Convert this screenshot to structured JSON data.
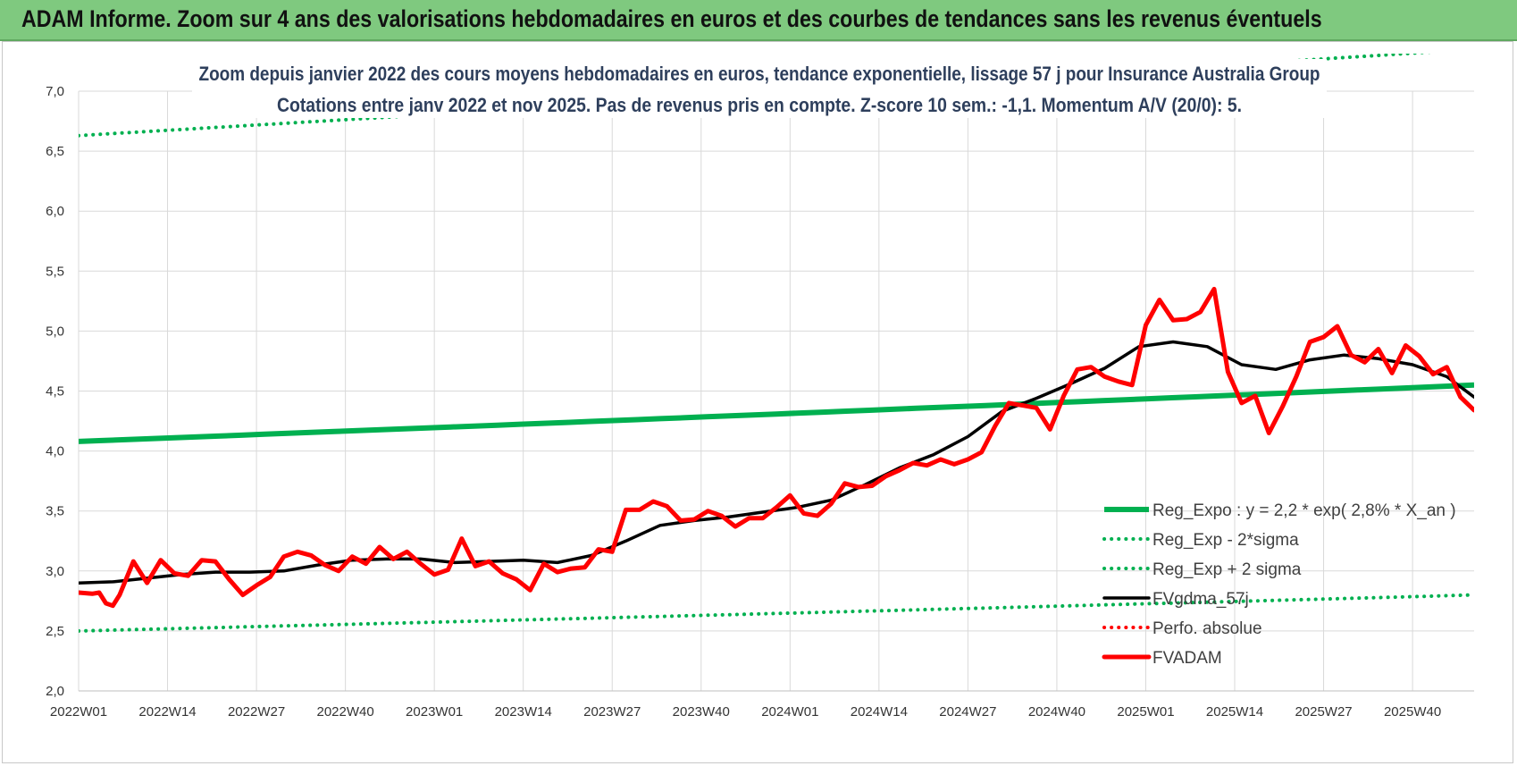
{
  "banner": {
    "title": "ADAM Informe. Zoom sur 4 ans des valorisations hebdomadaires en euros et des courbes de tendances sans les revenus éventuels"
  },
  "colors": {
    "banner_bg": "#7fc97f",
    "reg_expo": "#00b050",
    "fvgdma": "#000000",
    "fvadam": "#ff0000",
    "perfo": "#ff0000"
  },
  "chart_data": {
    "type": "line",
    "title_lines": [
      "Zoom depuis janvier 2022 des cours moyens hebdomadaires en euros, tendance exponentielle, lissage 57 j pour Insurance Australia Group",
      "Cotations entre janv 2022 et nov 2025. Pas de revenus pris en compte. Z-score 10 sem.: -1,1. Momentum A/V (20/0): 5."
    ],
    "x_tick_labels": [
      "2022W01",
      "2022W14",
      "2022W27",
      "2022W40",
      "2023W01",
      "2023W14",
      "2023W27",
      "2023W40",
      "2024W01",
      "2024W14",
      "2024W27",
      "2024W40",
      "2025W01",
      "2025W14",
      "2025W27",
      "2025W40"
    ],
    "x_range": [
      0,
      204
    ],
    "y_tick_labels": [
      "2,0",
      "2,5",
      "3,0",
      "3,5",
      "4,0",
      "4,5",
      "5,0",
      "5,5",
      "6,0",
      "6,5",
      "7,0"
    ],
    "ylim": [
      2.0,
      7.0
    ],
    "grid": true,
    "legend_position": "bottom-right",
    "series": [
      {
        "name": "Reg_Expo : y = 2,2 * exp( 2,8% *  X_an )",
        "style": "solid-thick",
        "color": "#00b050",
        "x": [
          0,
          204
        ],
        "y": [
          4.08,
          4.55
        ]
      },
      {
        "name": "Reg_Exp - 2*sigma",
        "style": "dotted",
        "color": "#00b050",
        "x": [
          0,
          204
        ],
        "y": [
          2.5,
          2.8
        ]
      },
      {
        "name": "Reg_Exp + 2 sigma",
        "style": "dotted",
        "color": "#00b050",
        "x": [
          0,
          204
        ],
        "y": [
          6.63,
          7.35
        ]
      },
      {
        "name": "FVgdma_57j",
        "style": "solid",
        "color": "#000000",
        "x": [
          0,
          5,
          10,
          15,
          20,
          25,
          30,
          35,
          40,
          45,
          50,
          55,
          60,
          65,
          70,
          75,
          80,
          85,
          90,
          95,
          100,
          105,
          110,
          115,
          120,
          125,
          130,
          135,
          140,
          145,
          150,
          155,
          160,
          165,
          170,
          175,
          180,
          185,
          190,
          195,
          200,
          204
        ],
        "y": [
          2.9,
          2.91,
          2.94,
          2.97,
          2.99,
          2.99,
          3.0,
          3.05,
          3.09,
          3.1,
          3.1,
          3.07,
          3.08,
          3.09,
          3.07,
          3.13,
          3.25,
          3.38,
          3.42,
          3.45,
          3.49,
          3.53,
          3.59,
          3.72,
          3.86,
          3.97,
          4.12,
          4.33,
          4.44,
          4.56,
          4.69,
          4.87,
          4.91,
          4.87,
          4.72,
          4.68,
          4.76,
          4.8,
          4.77,
          4.72,
          4.62,
          4.45
        ]
      },
      {
        "name": "Perfo. absolue",
        "style": "dotted",
        "color": "#ff0000",
        "x": [],
        "y": []
      },
      {
        "name": "FVADAM",
        "style": "solid-thick",
        "color": "#ff0000",
        "x": [
          0,
          2,
          3,
          4,
          5,
          6,
          8,
          10,
          12,
          14,
          16,
          18,
          20,
          22,
          24,
          26,
          28,
          30,
          32,
          34,
          36,
          38,
          40,
          42,
          44,
          46,
          48,
          50,
          52,
          54,
          56,
          58,
          60,
          62,
          64,
          66,
          68,
          70,
          72,
          74,
          76,
          78,
          80,
          82,
          84,
          86,
          88,
          90,
          92,
          94,
          96,
          98,
          100,
          102,
          104,
          106,
          108,
          110,
          112,
          114,
          116,
          118,
          120,
          122,
          124,
          126,
          128,
          130,
          132,
          134,
          136,
          138,
          140,
          142,
          144,
          146,
          148,
          150,
          152,
          154,
          156,
          158,
          160,
          162,
          164,
          166,
          168,
          170,
          172,
          174,
          176,
          178,
          180,
          182,
          184,
          186,
          188,
          190,
          192,
          194,
          196,
          198,
          200,
          202,
          204
        ],
        "y": [
          2.82,
          2.81,
          2.82,
          2.73,
          2.71,
          2.8,
          3.08,
          2.9,
          3.09,
          2.98,
          2.96,
          3.09,
          3.08,
          2.93,
          2.8,
          2.88,
          2.95,
          3.12,
          3.16,
          3.13,
          3.05,
          3.0,
          3.12,
          3.06,
          3.2,
          3.1,
          3.16,
          3.06,
          2.97,
          3.01,
          3.27,
          3.04,
          3.08,
          2.98,
          2.93,
          2.84,
          3.06,
          2.99,
          3.02,
          3.03,
          3.18,
          3.16,
          3.51,
          3.51,
          3.58,
          3.54,
          3.42,
          3.43,
          3.5,
          3.46,
          3.37,
          3.44,
          3.44,
          3.53,
          3.63,
          3.48,
          3.46,
          3.56,
          3.73,
          3.7,
          3.71,
          3.79,
          3.84,
          3.9,
          3.88,
          3.93,
          3.89,
          3.93,
          3.99,
          4.21,
          4.4,
          4.38,
          4.36,
          4.18,
          4.46,
          4.68,
          4.7,
          4.62,
          4.58,
          4.55,
          5.05,
          5.26,
          5.09,
          5.1,
          5.16,
          5.35,
          4.66,
          4.4,
          4.46,
          4.15,
          4.37,
          4.62,
          4.91,
          4.95,
          5.04,
          4.8,
          4.74,
          4.85,
          4.65,
          4.88,
          4.79,
          4.64,
          4.7,
          4.45,
          4.34
        ]
      }
    ]
  }
}
